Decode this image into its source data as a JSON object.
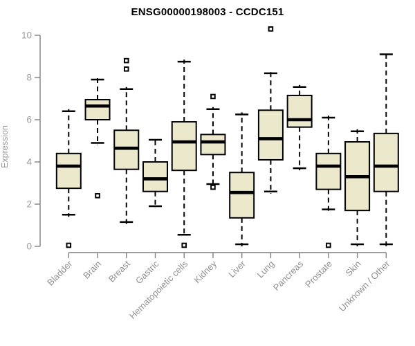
{
  "chart_data": {
    "type": "boxplot",
    "title": "ENSG00000198003 - CCDC151",
    "ylabel": "Expression",
    "xlabel": "",
    "ylim": [
      0,
      10
    ],
    "yticks": [
      0,
      2,
      4,
      6,
      8,
      10
    ],
    "grid": false,
    "legend_position": "none",
    "categories": [
      "Bladder",
      "Brain",
      "Breast",
      "Gastric",
      "Hematopoietic cells",
      "Kidney",
      "Liver",
      "Lung",
      "Pancreas",
      "Prostate",
      "Skin",
      "Unknown / Other"
    ],
    "series": [
      {
        "name": "Bladder",
        "whisker_low": 1.5,
        "q1": 2.75,
        "median": 3.8,
        "q3": 4.4,
        "whisker_high": 6.4,
        "outliers": [
          0.05
        ]
      },
      {
        "name": "Brain",
        "whisker_low": 4.9,
        "q1": 6.0,
        "median": 6.65,
        "q3": 6.95,
        "whisker_high": 7.9,
        "outliers": [
          2.4
        ]
      },
      {
        "name": "Breast",
        "whisker_low": 1.15,
        "q1": 3.65,
        "median": 4.65,
        "q3": 5.5,
        "whisker_high": 7.45,
        "outliers": [
          8.4,
          8.8
        ]
      },
      {
        "name": "Gastric",
        "whisker_low": 1.9,
        "q1": 2.6,
        "median": 3.2,
        "q3": 4.0,
        "whisker_high": 5.05,
        "outliers": []
      },
      {
        "name": "Hematopoietic cells",
        "whisker_low": 0.55,
        "q1": 3.6,
        "median": 4.95,
        "q3": 5.9,
        "whisker_high": 8.75,
        "outliers": [
          0.05
        ]
      },
      {
        "name": "Kidney",
        "whisker_low": 2.95,
        "q1": 4.35,
        "median": 4.95,
        "q3": 5.3,
        "whisker_high": 6.5,
        "outliers": [
          7.1,
          2.8
        ]
      },
      {
        "name": "Liver",
        "whisker_low": 0.1,
        "q1": 1.35,
        "median": 2.55,
        "q3": 3.5,
        "whisker_high": 6.25,
        "outliers": []
      },
      {
        "name": "Lung",
        "whisker_low": 2.6,
        "q1": 4.1,
        "median": 5.1,
        "q3": 6.45,
        "whisker_high": 8.2,
        "outliers": [
          10.3
        ]
      },
      {
        "name": "Pancreas",
        "whisker_low": 3.7,
        "q1": 5.65,
        "median": 6.0,
        "q3": 7.15,
        "whisker_high": 7.55,
        "outliers": []
      },
      {
        "name": "Prostate",
        "whisker_low": 1.75,
        "q1": 2.7,
        "median": 3.8,
        "q3": 4.4,
        "whisker_high": 6.1,
        "outliers": [
          0.05
        ]
      },
      {
        "name": "Skin",
        "whisker_low": 0.1,
        "q1": 1.7,
        "median": 3.3,
        "q3": 4.95,
        "whisker_high": 5.45,
        "outliers": []
      },
      {
        "name": "Unknown / Other",
        "whisker_low": 0.1,
        "q1": 2.6,
        "median": 3.8,
        "q3": 5.35,
        "whisker_high": 9.1,
        "outliers": []
      }
    ],
    "colors": {
      "box_fill": "#ECE8CC",
      "box_border": "#000000",
      "median": "#000000",
      "whisker": "#000000",
      "axis": "#7f7f7f",
      "tick_label": "#9a9a9a",
      "category_label": "#919191",
      "title": "#000000",
      "background": "#ffffff"
    }
  }
}
